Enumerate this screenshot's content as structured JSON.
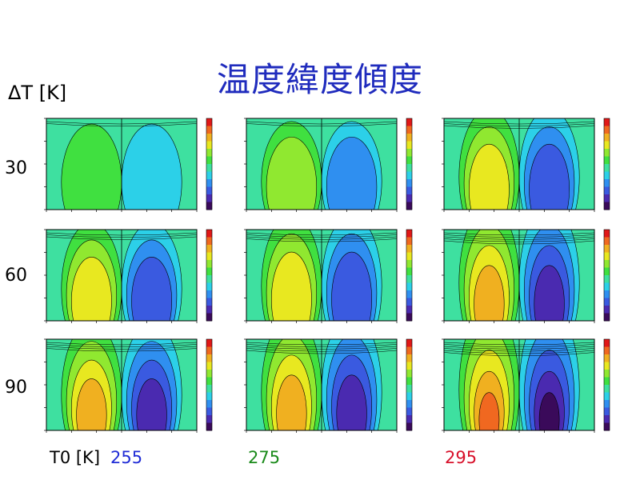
{
  "title": "温度緯度傾度",
  "row_axis_label": "ΔT [K]",
  "col_axis_label": "T0 [K]",
  "rows": [
    "30",
    "60",
    "90"
  ],
  "cols": [
    {
      "value": "255",
      "color": "#1f2bd6"
    },
    {
      "value": "275",
      "color": "#1a8a1a"
    },
    {
      "value": "295",
      "color": "#d8102a"
    }
  ],
  "colormap": [
    "#3a0a5a",
    "#4a2ab0",
    "#3a5ae0",
    "#2f8ff0",
    "#2cd0e8",
    "#3ee0a0",
    "#40e040",
    "#90e830",
    "#e8e820",
    "#f0b020",
    "#f06820",
    "#e01818"
  ],
  "chart_data": [
    {
      "type": "heatmap",
      "row": "30",
      "col": "255",
      "intensity": 0.25
    },
    {
      "type": "heatmap",
      "row": "30",
      "col": "275",
      "intensity": 0.3
    },
    {
      "type": "heatmap",
      "row": "30",
      "col": "295",
      "intensity": 0.55
    },
    {
      "type": "heatmap",
      "row": "60",
      "col": "255",
      "intensity": 0.5
    },
    {
      "type": "heatmap",
      "row": "60",
      "col": "275",
      "intensity": 0.65
    },
    {
      "type": "heatmap",
      "row": "60",
      "col": "295",
      "intensity": 0.85
    },
    {
      "type": "heatmap",
      "row": "90",
      "col": "255",
      "intensity": 0.7
    },
    {
      "type": "heatmap",
      "row": "90",
      "col": "275",
      "intensity": 0.85
    },
    {
      "type": "heatmap",
      "row": "90",
      "col": "295",
      "intensity": 1.0
    }
  ]
}
